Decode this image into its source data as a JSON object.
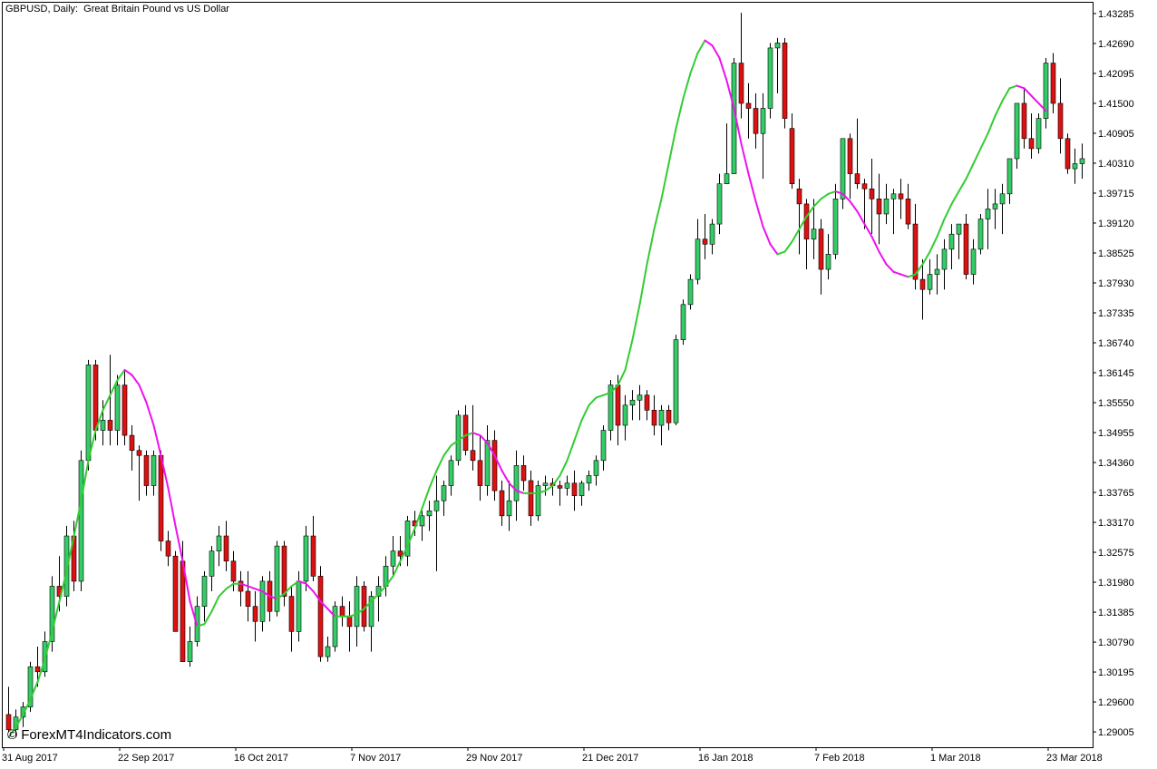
{
  "header": {
    "title": "GBPUSD, Daily:  Great Britain Pound vs US Dollar"
  },
  "watermark": "© ForexMT4Indicators.com",
  "colors": {
    "bull": "#33CC66",
    "bear": "#DD1111",
    "ma_up": "#33CC33",
    "ma_down": "#EE11EE",
    "axis": "#000000",
    "background": "#FFFFFF"
  },
  "chart_data": {
    "type": "candlestick",
    "symbol": "GBPUSD",
    "timeframe": "Daily",
    "ylim": [
      1.287,
      1.435
    ],
    "y_ticks": [
      "1.43285",
      "1.42690",
      "1.42095",
      "1.41500",
      "1.40905",
      "1.40310",
      "1.39715",
      "1.39120",
      "1.38525",
      "1.37930",
      "1.37335",
      "1.36740",
      "1.36145",
      "1.35550",
      "1.34955",
      "1.34360",
      "1.33765",
      "1.33170",
      "1.32575",
      "1.31980",
      "1.31385",
      "1.30790",
      "1.30195",
      "1.29600",
      "1.29005"
    ],
    "x_ticks": [
      {
        "label": "31 Aug 2017",
        "index": 0
      },
      {
        "label": "22 Sep 2017",
        "index": 16
      },
      {
        "label": "16 Oct 2017",
        "index": 32
      },
      {
        "label": "7 Nov 2017",
        "index": 48
      },
      {
        "label": "29 Nov 2017",
        "index": 64
      },
      {
        "label": "21 Dec 2017",
        "index": 80
      },
      {
        "label": "16 Jan 2018",
        "index": 96
      },
      {
        "label": "7 Feb 2018",
        "index": 112
      },
      {
        "label": "1 Mar 2018",
        "index": 128
      },
      {
        "label": "23 Mar 2018",
        "index": 144
      }
    ],
    "ohlc": [
      [
        1.2935,
        1.299,
        1.29,
        1.2905
      ],
      [
        1.2905,
        1.2945,
        1.289,
        1.293
      ],
      [
        1.293,
        1.296,
        1.291,
        1.295
      ],
      [
        1.295,
        1.304,
        1.294,
        1.303
      ],
      [
        1.303,
        1.307,
        1.299,
        1.302
      ],
      [
        1.302,
        1.31,
        1.301,
        1.308
      ],
      [
        1.308,
        1.321,
        1.306,
        1.319
      ],
      [
        1.319,
        1.325,
        1.314,
        1.317
      ],
      [
        1.317,
        1.331,
        1.315,
        1.329
      ],
      [
        1.329,
        1.332,
        1.318,
        1.32
      ],
      [
        1.32,
        1.346,
        1.318,
        1.344
      ],
      [
        1.344,
        1.364,
        1.342,
        1.363
      ],
      [
        1.363,
        1.364,
        1.348,
        1.35
      ],
      [
        1.35,
        1.356,
        1.347,
        1.352
      ],
      [
        1.352,
        1.365,
        1.347,
        1.35
      ],
      [
        1.35,
        1.361,
        1.347,
        1.359
      ],
      [
        1.359,
        1.362,
        1.347,
        1.349
      ],
      [
        1.349,
        1.351,
        1.342,
        1.346
      ],
      [
        1.346,
        1.347,
        1.336,
        1.345
      ],
      [
        1.345,
        1.346,
        1.337,
        1.339
      ],
      [
        1.339,
        1.346,
        1.337,
        1.345
      ],
      [
        1.345,
        1.346,
        1.326,
        1.328
      ],
      [
        1.328,
        1.33,
        1.323,
        1.325
      ],
      [
        1.325,
        1.326,
        1.31,
        1.31
      ],
      [
        1.324,
        1.328,
        1.305,
        1.304
      ],
      [
        1.304,
        1.311,
        1.303,
        1.308
      ],
      [
        1.308,
        1.317,
        1.307,
        1.315
      ],
      [
        1.315,
        1.322,
        1.312,
        1.321
      ],
      [
        1.321,
        1.327,
        1.318,
        1.326
      ],
      [
        1.326,
        1.331,
        1.323,
        1.329
      ],
      [
        1.329,
        1.332,
        1.322,
        1.324
      ],
      [
        1.324,
        1.326,
        1.318,
        1.32
      ],
      [
        1.32,
        1.322,
        1.315,
        1.318
      ],
      [
        1.318,
        1.322,
        1.312,
        1.315
      ],
      [
        1.315,
        1.318,
        1.308,
        1.312
      ],
      [
        1.312,
        1.321,
        1.31,
        1.32
      ],
      [
        1.32,
        1.322,
        1.312,
        1.314
      ],
      [
        1.314,
        1.328,
        1.313,
        1.327
      ],
      [
        1.327,
        1.328,
        1.315,
        1.317
      ],
      [
        1.317,
        1.319,
        1.306,
        1.31
      ],
      [
        1.31,
        1.322,
        1.308,
        1.32
      ],
      [
        1.32,
        1.331,
        1.318,
        1.329
      ],
      [
        1.329,
        1.333,
        1.32,
        1.321
      ],
      [
        1.321,
        1.323,
        1.304,
        1.305
      ],
      [
        1.305,
        1.309,
        1.304,
        1.307
      ],
      [
        1.307,
        1.316,
        1.306,
        1.315
      ],
      [
        1.315,
        1.317,
        1.311,
        1.313
      ],
      [
        1.313,
        1.316,
        1.306,
        1.311
      ],
      [
        1.311,
        1.321,
        1.307,
        1.319
      ],
      [
        1.319,
        1.32,
        1.31,
        1.311
      ],
      [
        1.311,
        1.318,
        1.306,
        1.317
      ],
      [
        1.317,
        1.321,
        1.312,
        1.319
      ],
      [
        1.319,
        1.325,
        1.317,
        1.323
      ],
      [
        1.323,
        1.329,
        1.321,
        1.326
      ],
      [
        1.326,
        1.329,
        1.323,
        1.325
      ],
      [
        1.325,
        1.333,
        1.323,
        1.332
      ],
      [
        1.332,
        1.334,
        1.329,
        1.331
      ],
      [
        1.331,
        1.334,
        1.328,
        1.333
      ],
      [
        1.333,
        1.336,
        1.33,
        1.334
      ],
      [
        1.334,
        1.341,
        1.322,
        1.336
      ],
      [
        1.336,
        1.34,
        1.333,
        1.339
      ],
      [
        1.339,
        1.345,
        1.337,
        1.344
      ],
      [
        1.344,
        1.354,
        1.343,
        1.353
      ],
      [
        1.353,
        1.355,
        1.345,
        1.346
      ],
      [
        1.346,
        1.355,
        1.342,
        1.344
      ],
      [
        1.344,
        1.349,
        1.336,
        1.339
      ],
      [
        1.339,
        1.351,
        1.337,
        1.348
      ],
      [
        1.348,
        1.35,
        1.336,
        1.338
      ],
      [
        1.338,
        1.34,
        1.331,
        1.333
      ],
      [
        1.333,
        1.34,
        1.33,
        1.336
      ],
      [
        1.336,
        1.346,
        1.332,
        1.343
      ],
      [
        1.343,
        1.345,
        1.338,
        1.34
      ],
      [
        1.34,
        1.342,
        1.331,
        1.333
      ],
      [
        1.333,
        1.34,
        1.332,
        1.339
      ],
      [
        1.339,
        1.341,
        1.337,
        1.3395
      ],
      [
        1.3395,
        1.3405,
        1.337,
        1.339
      ],
      [
        1.339,
        1.34,
        1.335,
        1.3385
      ],
      [
        1.3385,
        1.341,
        1.337,
        1.3395
      ],
      [
        1.3395,
        1.342,
        1.334,
        1.337
      ],
      [
        1.337,
        1.34,
        1.335,
        1.3395
      ],
      [
        1.3395,
        1.342,
        1.338,
        1.341
      ],
      [
        1.341,
        1.345,
        1.339,
        1.344
      ],
      [
        1.344,
        1.351,
        1.342,
        1.35
      ],
      [
        1.35,
        1.36,
        1.348,
        1.359
      ],
      [
        1.359,
        1.361,
        1.347,
        1.351
      ],
      [
        1.351,
        1.357,
        1.348,
        1.355
      ],
      [
        1.355,
        1.358,
        1.352,
        1.356
      ],
      [
        1.356,
        1.359,
        1.352,
        1.357
      ],
      [
        1.357,
        1.358,
        1.352,
        1.354
      ],
      [
        1.354,
        1.357,
        1.349,
        1.351
      ],
      [
        1.351,
        1.355,
        1.347,
        1.354
      ],
      [
        1.354,
        1.355,
        1.35,
        1.3515
      ],
      [
        1.3515,
        1.369,
        1.351,
        1.368
      ],
      [
        1.368,
        1.376,
        1.367,
        1.375
      ],
      [
        1.375,
        1.381,
        1.374,
        1.38
      ],
      [
        1.38,
        1.392,
        1.379,
        1.388
      ],
      [
        1.388,
        1.393,
        1.384,
        1.387
      ],
      [
        1.387,
        1.392,
        1.385,
        1.391
      ],
      [
        1.391,
        1.401,
        1.389,
        1.399
      ],
      [
        1.399,
        1.411,
        1.399,
        1.401
      ],
      [
        1.401,
        1.424,
        1.401,
        1.423
      ],
      [
        1.423,
        1.433,
        1.412,
        1.415
      ],
      [
        1.415,
        1.419,
        1.408,
        1.414
      ],
      [
        1.414,
        1.417,
        1.406,
        1.409
      ],
      [
        1.409,
        1.417,
        1.4,
        1.414
      ],
      [
        1.414,
        1.427,
        1.412,
        1.426
      ],
      [
        1.426,
        1.428,
        1.417,
        1.427
      ],
      [
        1.427,
        1.428,
        1.41,
        1.412
      ],
      [
        1.41,
        1.413,
        1.398,
        1.399
      ],
      [
        1.398,
        1.4,
        1.385,
        1.395
      ],
      [
        1.395,
        1.396,
        1.382,
        1.388
      ],
      [
        1.388,
        1.396,
        1.384,
        1.39
      ],
      [
        1.39,
        1.392,
        1.377,
        1.382
      ],
      [
        1.382,
        1.389,
        1.38,
        1.385
      ],
      [
        1.385,
        1.399,
        1.384,
        1.396
      ],
      [
        1.396,
        1.407,
        1.394,
        1.408
      ],
      [
        1.408,
        1.409,
        1.396,
        1.401
      ],
      [
        1.401,
        1.412,
        1.398,
        1.399
      ],
      [
        1.399,
        1.4,
        1.39,
        1.398
      ],
      [
        1.398,
        1.404,
        1.389,
        1.396
      ],
      [
        1.396,
        1.401,
        1.387,
        1.393
      ],
      [
        1.393,
        1.399,
        1.391,
        1.396
      ],
      [
        1.396,
        1.398,
        1.389,
        1.397
      ],
      [
        1.397,
        1.4,
        1.392,
        1.396
      ],
      [
        1.396,
        1.399,
        1.39,
        1.391
      ],
      [
        1.391,
        1.395,
        1.378,
        1.38
      ],
      [
        1.38,
        1.384,
        1.372,
        1.378
      ],
      [
        1.378,
        1.384,
        1.377,
        1.381
      ],
      [
        1.381,
        1.385,
        1.377,
        1.382
      ],
      [
        1.382,
        1.388,
        1.378,
        1.386
      ],
      [
        1.386,
        1.391,
        1.382,
        1.389
      ],
      [
        1.389,
        1.39,
        1.384,
        1.391
      ],
      [
        1.391,
        1.393,
        1.38,
        1.381
      ],
      [
        1.381,
        1.388,
        1.379,
        1.386
      ],
      [
        1.386,
        1.393,
        1.385,
        1.392
      ],
      [
        1.392,
        1.398,
        1.386,
        1.394
      ],
      [
        1.394,
        1.398,
        1.39,
        1.395
      ],
      [
        1.395,
        1.399,
        1.389,
        1.397
      ],
      [
        1.397,
        1.404,
        1.395,
        1.404
      ],
      [
        1.404,
        1.415,
        1.402,
        1.415
      ],
      [
        1.415,
        1.418,
        1.406,
        1.408
      ],
      [
        1.408,
        1.413,
        1.404,
        1.406
      ],
      [
        1.406,
        1.413,
        1.405,
        1.412
      ],
      [
        1.412,
        1.424,
        1.41,
        1.423
      ],
      [
        1.423,
        1.425,
        1.413,
        1.415
      ],
      [
        1.415,
        1.42,
        1.405,
        1.408
      ],
      [
        1.408,
        1.409,
        1.401,
        1.402
      ],
      [
        1.402,
        1.406,
        1.399,
        1.403
      ],
      [
        1.403,
        1.407,
        1.4,
        1.404
      ]
    ],
    "moving_average": [
      1.289,
      1.291,
      1.2935,
      1.2965,
      1.3,
      1.3045,
      1.31,
      1.316,
      1.322,
      1.329,
      1.336,
      1.344,
      1.35,
      1.354,
      1.357,
      1.36,
      1.362,
      1.361,
      1.359,
      1.3555,
      1.351,
      1.345,
      1.3385,
      1.331,
      1.324,
      1.316,
      1.311,
      1.3115,
      1.314,
      1.317,
      1.3185,
      1.3195,
      1.3195,
      1.319,
      1.3185,
      1.318,
      1.317,
      1.3165,
      1.3175,
      1.319,
      1.32,
      1.3195,
      1.318,
      1.316,
      1.3145,
      1.313,
      1.313,
      1.313,
      1.3135,
      1.3145,
      1.316,
      1.3175,
      1.319,
      1.321,
      1.324,
      1.327,
      1.3305,
      1.3345,
      1.3385,
      1.342,
      1.345,
      1.347,
      1.348,
      1.349,
      1.3495,
      1.349,
      1.3475,
      1.345,
      1.342,
      1.3395,
      1.338,
      1.3375,
      1.3375,
      1.3375,
      1.338,
      1.339,
      1.341,
      1.344,
      1.348,
      1.352,
      1.355,
      1.3565,
      1.357,
      1.3575,
      1.359,
      1.362,
      1.368,
      1.375,
      1.383,
      1.39,
      1.396,
      1.403,
      1.41,
      1.416,
      1.421,
      1.425,
      1.4275,
      1.4265,
      1.424,
      1.4195,
      1.414,
      1.407,
      1.401,
      1.3955,
      1.3905,
      1.387,
      1.385,
      1.3855,
      1.3875,
      1.39,
      1.3925,
      1.3945,
      1.396,
      1.397,
      1.3975,
      1.397,
      1.3955,
      1.3935,
      1.391,
      1.3885,
      1.3855,
      1.383,
      1.3815,
      1.381,
      1.3805,
      1.381,
      1.383,
      1.3855,
      1.3885,
      1.392,
      1.395,
      1.3975,
      1.4,
      1.403,
      1.406,
      1.409,
      1.4125,
      1.4155,
      1.418,
      1.4185,
      1.418,
      1.4165,
      1.415,
      1.4135
    ]
  }
}
